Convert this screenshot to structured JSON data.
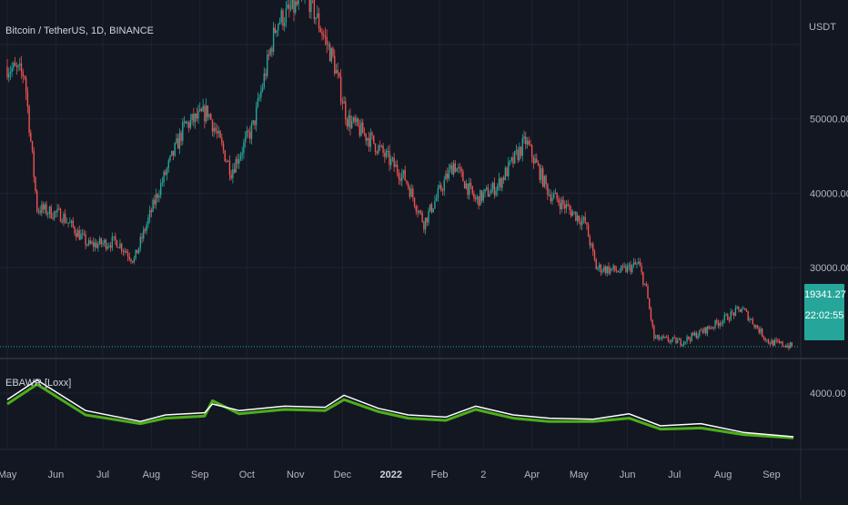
{
  "chart_data": [
    {
      "type": "candlestick",
      "symbol_title": "Bitcoin / TetherUS, 1D, BINANCE",
      "currency": "USDT",
      "y_ticks": [
        "50000.00",
        "40000.00",
        "30000.00"
      ],
      "y_tick_values": [
        50000,
        40000,
        30000
      ],
      "ylim": [
        18000,
        66000
      ],
      "last_price": "19341.27",
      "countdown": "22:02:55",
      "grid": true,
      "up_color": "#26a69a",
      "down_color": "#ef5350",
      "close_path": {
        "x": [
          "2021-05-01",
          "2021-05-12",
          "2021-05-20",
          "2021-06-05",
          "2021-06-22",
          "2021-07-10",
          "2021-07-21",
          "2021-08-05",
          "2021-08-22",
          "2021-09-06",
          "2021-09-21",
          "2021-10-05",
          "2021-10-20",
          "2021-11-09",
          "2021-11-25",
          "2021-12-04",
          "2021-12-20",
          "2022-01-10",
          "2022-01-22",
          "2022-02-10",
          "2022-02-24",
          "2022-03-10",
          "2022-03-28",
          "2022-04-12",
          "2022-05-05",
          "2022-05-12",
          "2022-05-28",
          "2022-06-08",
          "2022-06-13",
          "2022-06-18",
          "2022-07-05",
          "2022-07-20",
          "2022-08-13",
          "2022-08-30",
          "2022-09-14"
        ],
        "y": [
          57000,
          56000,
          38000,
          37000,
          33000,
          33500,
          31000,
          40000,
          49000,
          51000,
          43000,
          49000,
          63000,
          66500,
          58000,
          50000,
          47000,
          42000,
          36000,
          44000,
          39000,
          41000,
          47000,
          40000,
          36000,
          30000,
          29500,
          30500,
          27000,
          20500,
          20000,
          21500,
          24500,
          20000,
          19400
        ]
      }
    },
    {
      "type": "line",
      "indicator_title": "EBAWR [Loxx]",
      "y_ticks": [
        "4000.00"
      ],
      "y_tick_values": [
        4000
      ],
      "ylim": [
        1500,
        5500
      ],
      "series": [
        {
          "color": "#ffffff",
          "x": [
            "2021-05-01",
            "2021-05-20",
            "2021-06-20",
            "2021-07-25",
            "2021-08-10",
            "2021-09-04",
            "2021-09-09",
            "2021-09-26",
            "2021-10-25",
            "2021-11-20",
            "2021-12-02",
            "2021-12-24",
            "2022-01-12",
            "2022-02-05",
            "2022-02-24",
            "2022-03-20",
            "2022-04-12",
            "2022-05-10",
            "2022-06-02",
            "2022-06-22",
            "2022-07-18",
            "2022-08-14",
            "2022-09-15"
          ],
          "y": [
            3700,
            4600,
            3200,
            2700,
            3000,
            3100,
            3500,
            3200,
            3400,
            3350,
            3900,
            3300,
            3000,
            2900,
            3400,
            3000,
            2850,
            2800,
            3050,
            2500,
            2600,
            2200,
            2000
          ]
        },
        {
          "color": "#4caf19",
          "x": [
            "2021-05-01",
            "2021-05-20",
            "2021-06-20",
            "2021-07-25",
            "2021-08-10",
            "2021-09-04",
            "2021-09-09",
            "2021-09-26",
            "2021-10-25",
            "2021-11-20",
            "2021-12-02",
            "2021-12-24",
            "2022-01-12",
            "2022-02-05",
            "2022-02-24",
            "2022-03-20",
            "2022-04-12",
            "2022-05-10",
            "2022-06-02",
            "2022-06-22",
            "2022-07-18",
            "2022-08-14",
            "2022-09-15"
          ],
          "y": [
            3500,
            4400,
            3000,
            2600,
            2850,
            2950,
            3650,
            3050,
            3250,
            3200,
            3700,
            3150,
            2850,
            2750,
            3250,
            2850,
            2700,
            2700,
            2850,
            2350,
            2400,
            2100,
            1950
          ]
        }
      ]
    }
  ],
  "x_axis": {
    "labels": [
      "May",
      "Jun",
      "Jul",
      "Aug",
      "Sep",
      "Oct",
      "Nov",
      "Dec",
      "2022",
      "Feb",
      "2",
      "Apr",
      "May",
      "Jun",
      "Jul",
      "Aug",
      "Sep"
    ],
    "dates": [
      "2021-05-01",
      "2021-06-01",
      "2021-07-01",
      "2021-08-01",
      "2021-09-01",
      "2021-10-01",
      "2021-11-01",
      "2021-12-01",
      "2022-01-01",
      "2022-02-01",
      "2022-03-01",
      "2022-04-01",
      "2022-05-01",
      "2022-06-01",
      "2022-07-01",
      "2022-08-01",
      "2022-09-01"
    ]
  }
}
